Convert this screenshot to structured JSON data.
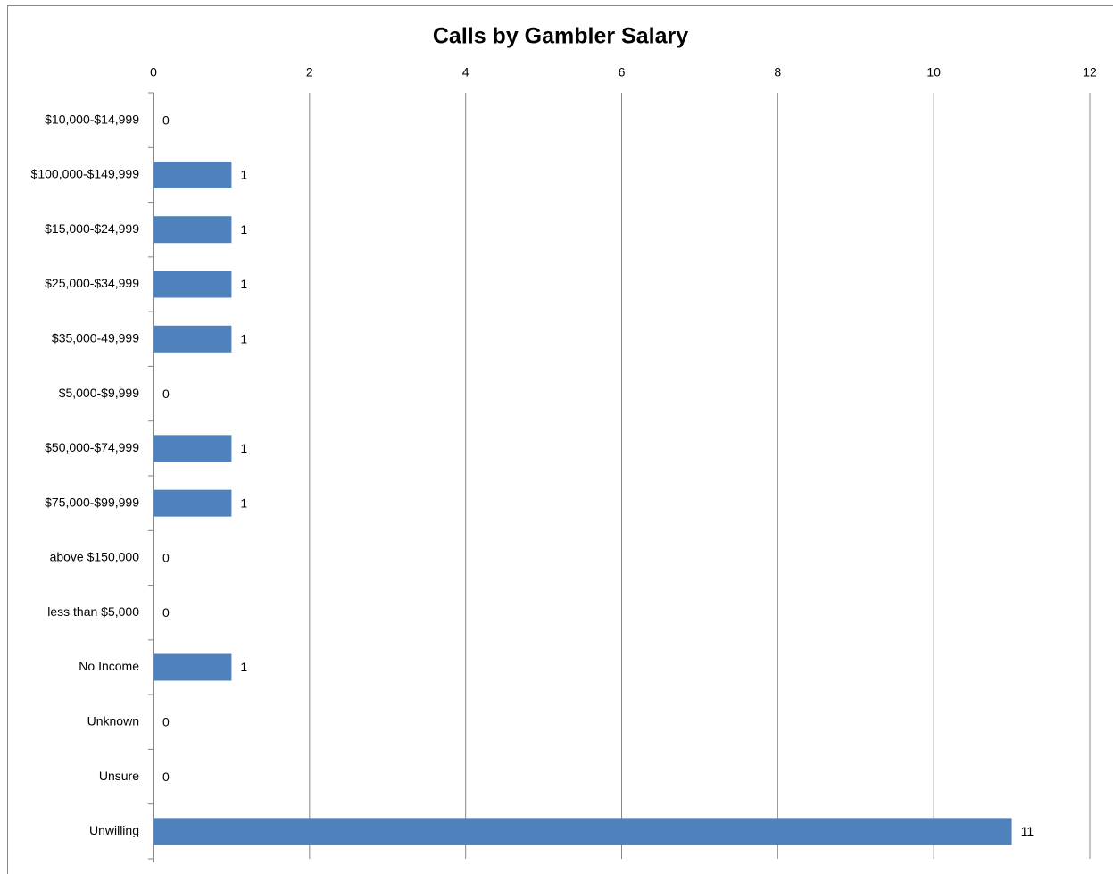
{
  "chart_data": {
    "type": "bar",
    "orientation": "horizontal",
    "title": "Calls by Gambler Salary",
    "categories": [
      "$10,000-$14,999",
      "$100,000-$149,999",
      "$15,000-$24,999",
      "$25,000-$34,999",
      "$35,000-49,999",
      "$5,000-$9,999",
      "$50,000-$74,999",
      "$75,000-$99,999",
      "above $150,000",
      "less than $5,000",
      "No Income",
      "Unknown",
      "Unsure",
      "Unwilling"
    ],
    "values": [
      0,
      1,
      1,
      1,
      1,
      0,
      1,
      1,
      0,
      0,
      1,
      0,
      0,
      11
    ],
    "color": "#4f81bd",
    "xlim": [
      0,
      12
    ],
    "xticks": [
      0,
      2,
      4,
      6,
      8,
      10,
      12
    ],
    "grid": true,
    "data_labels": true
  }
}
